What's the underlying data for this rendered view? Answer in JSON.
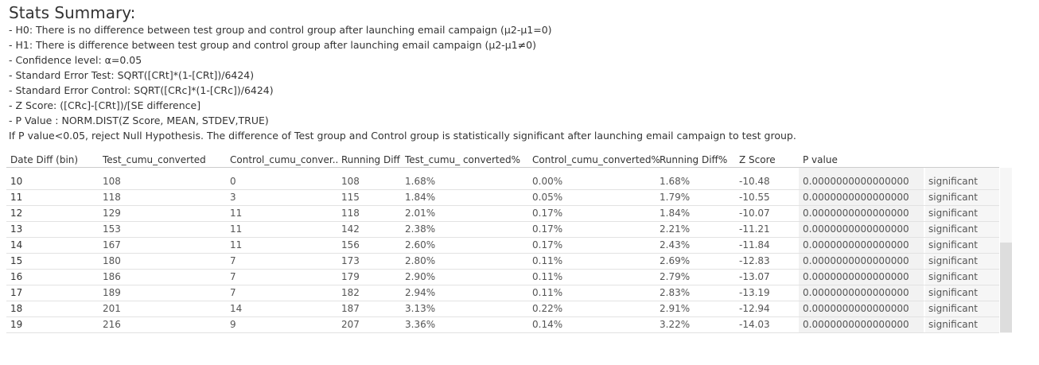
{
  "header": {
    "title": "Stats Summary:"
  },
  "notes": [
    "- H0:  There is no difference between test group and control group after launching email campaign  (μ2-μ1=0)",
    "- H1:  There is difference between test group and control group after launching email campaign  (μ2-μ1≠0)",
    "- Confidence level: α=0.05",
    "- Standard Error Test: SQRT([CRt]*(1-[CRt])/6424)",
    "- Standard Error Control: SQRT([CRc]*(1-[CRc])/6424)",
    "- Z Score: ([CRc]-[CRt])/[SE difference]",
    "- P Value : NORM.DIST(Z Score, MEAN, STDEV,TRUE)",
    "If P value<0.05, reject Null Hypothesis. The difference of Test group and Control group is statistically significant after launching email campaign to test group."
  ],
  "table": {
    "columns": [
      "Date Diff (bin)",
      "Test_cumu_converted",
      "Control_cumu_conver..",
      "Running Diff",
      "Test_cumu_ converted%",
      "Control_cumu_converted%",
      "Running Diff%",
      "Z Score",
      "P value",
      ""
    ],
    "rows": [
      [
        "10",
        "108",
        "0",
        "108",
        "1.68%",
        "0.00%",
        "1.68%",
        "-10.48",
        "0.0000000000000000",
        "significant"
      ],
      [
        "11",
        "118",
        "3",
        "115",
        "1.84%",
        "0.05%",
        "1.79%",
        "-10.55",
        "0.0000000000000000",
        "significant"
      ],
      [
        "12",
        "129",
        "11",
        "118",
        "2.01%",
        "0.17%",
        "1.84%",
        "-10.07",
        "0.0000000000000000",
        "significant"
      ],
      [
        "13",
        "153",
        "11",
        "142",
        "2.38%",
        "0.17%",
        "2.21%",
        "-11.21",
        "0.0000000000000000",
        "significant"
      ],
      [
        "14",
        "167",
        "11",
        "156",
        "2.60%",
        "0.17%",
        "2.43%",
        "-11.84",
        "0.0000000000000000",
        "significant"
      ],
      [
        "15",
        "180",
        "7",
        "173",
        "2.80%",
        "0.11%",
        "2.69%",
        "-12.83",
        "0.0000000000000000",
        "significant"
      ],
      [
        "16",
        "186",
        "7",
        "179",
        "2.90%",
        "0.11%",
        "2.79%",
        "-13.07",
        "0.0000000000000000",
        "significant"
      ],
      [
        "17",
        "189",
        "7",
        "182",
        "2.94%",
        "0.11%",
        "2.83%",
        "-13.19",
        "0.0000000000000000",
        "significant"
      ],
      [
        "18",
        "201",
        "14",
        "187",
        "3.13%",
        "0.22%",
        "2.91%",
        "-12.94",
        "0.0000000000000000",
        "significant"
      ],
      [
        "19",
        "216",
        "9",
        "207",
        "3.36%",
        "0.14%",
        "3.22%",
        "-14.03",
        "0.0000000000000000",
        "significant"
      ]
    ]
  }
}
